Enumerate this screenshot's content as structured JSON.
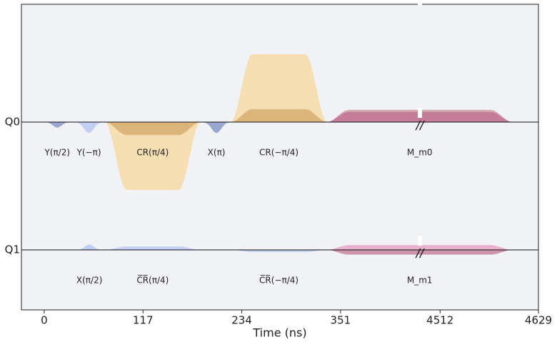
{
  "chart_data": {
    "type": "pulse",
    "xlabel": "Time (ns)",
    "xlim": [
      -27,
      4629
    ],
    "x_break": [
      445,
      4488
    ],
    "xticks": [
      0,
      117,
      234,
      351,
      4512,
      4629
    ],
    "channels": [
      {
        "name": "Q0",
        "pulses": [
          {
            "label": "Y(π/2)",
            "start": 0,
            "end": 31,
            "shape": "gaussian",
            "parts": [
              {
                "color": "#8f9fcc",
                "amp": -0.08
              }
            ]
          },
          {
            "label": "Y(−π)",
            "start": 36,
            "end": 70,
            "shape": "gaussian",
            "parts": [
              {
                "color": "#bccaf3",
                "amp": -0.16
              }
            ]
          },
          {
            "label": "CR(π/4)",
            "start": 72,
            "end": 185,
            "shape": "flat_top",
            "parts": [
              {
                "color": "#f5dcaa",
                "amp": -1.0
              },
              {
                "color": "#d9b077",
                "amp": -0.19
              }
            ]
          },
          {
            "label": "X(π)",
            "start": 187,
            "end": 221,
            "shape": "gaussian",
            "parts": [
              {
                "color": "#8f9fcc",
                "amp": -0.16
              }
            ]
          },
          {
            "label": "CR(−π/4)",
            "start": 221,
            "end": 335,
            "shape": "flat_top",
            "parts": [
              {
                "color": "#f5dcaa",
                "amp": 1.0
              },
              {
                "color": "#d9b077",
                "amp": 0.19
              }
            ]
          },
          {
            "label": "M_m0",
            "start": 335,
            "end": 4598,
            "shape": "flat_top",
            "parts": [
              {
                "color": "#cfa2aa",
                "amp": 0.18
              },
              {
                "color": "#c27896",
                "amp": 0.15
              }
            ]
          }
        ]
      },
      {
        "name": "Q1",
        "pulses": [
          {
            "label": "X(π/2)",
            "start": 38,
            "end": 69,
            "shape": "gaussian",
            "parts": [
              {
                "color": "#bccaf3",
                "amp": 0.08
              }
            ]
          },
          {
            "label": "C̅R̅(π/4)",
            "start": 72,
            "end": 185,
            "shape": "flat_top",
            "parts": [
              {
                "color": "#bccaf3",
                "amp": 0.05
              }
            ]
          },
          {
            "label": "C̅R̅(−π/4)",
            "start": 221,
            "end": 335,
            "shape": "flat_top",
            "parts": [
              {
                "color": "#bccaf3",
                "amp": -0.03
              }
            ]
          },
          {
            "label": "M_m1",
            "start": 335,
            "end": 4598,
            "shape": "flat_top",
            "parts": [
              {
                "color": "#e8aacb",
                "amp": 0.07
              },
              {
                "color": "#c98aa2",
                "amp": -0.07
              }
            ]
          }
        ]
      }
    ]
  }
}
